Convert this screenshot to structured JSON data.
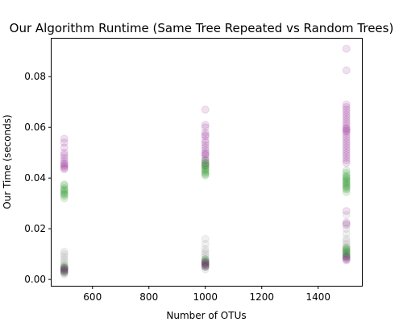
{
  "chart_data": {
    "type": "scatter",
    "title": "Our Algorithm Runtime (Same Tree Repeated vs Random Trees)",
    "xlabel": "Number of OTUs",
    "ylabel": "Our Time (seconds)",
    "xlim": [
      455,
      1555
    ],
    "ylim": [
      -0.0025,
      0.095
    ],
    "xticks": [
      600,
      800,
      1000,
      1200,
      1400
    ],
    "yticks": [
      0.0,
      0.02,
      0.04,
      0.06,
      0.08
    ],
    "ytick_labels": [
      "0.00",
      "0.02",
      "0.04",
      "0.06",
      "0.08"
    ],
    "xtick_labels": [
      "600",
      "800",
      "1000",
      "1200",
      "1400"
    ],
    "grid": false,
    "marker_alpha": 0.12,
    "series": [
      {
        "color": "#800080",
        "x": [
          500,
          500,
          500,
          500,
          500,
          500,
          500,
          500,
          500,
          500,
          500,
          500,
          500,
          1000,
          1000,
          1000,
          1000,
          1000,
          1000,
          1000,
          1000,
          1000,
          1000,
          1000,
          1000,
          1000,
          1000,
          1000,
          1000,
          1000,
          1000,
          1500,
          1500,
          1500,
          1500,
          1500,
          1500,
          1500,
          1500,
          1500,
          1500,
          1500,
          1500,
          1500,
          1500,
          1500,
          1500,
          1500,
          1500,
          1500,
          1500,
          1500,
          1500,
          1500,
          1500,
          1500,
          1500,
          1500,
          1500
        ],
        "y": [
          0.0435,
          0.044,
          0.0445,
          0.045,
          0.0455,
          0.046,
          0.047,
          0.048,
          0.049,
          0.05,
          0.052,
          0.054,
          0.0555,
          0.045,
          0.046,
          0.047,
          0.048,
          0.049,
          0.05,
          0.051,
          0.052,
          0.053,
          0.054,
          0.055,
          0.0565,
          0.058,
          0.06,
          0.061,
          0.067,
          0.057,
          0.0495,
          0.046,
          0.047,
          0.048,
          0.049,
          0.05,
          0.051,
          0.052,
          0.053,
          0.054,
          0.055,
          0.056,
          0.057,
          0.058,
          0.059,
          0.06,
          0.061,
          0.062,
          0.063,
          0.064,
          0.065,
          0.066,
          0.067,
          0.068,
          0.069,
          0.0825,
          0.091,
          0.0585,
          0.0595
        ]
      },
      {
        "color": "#008000",
        "x": [
          500,
          500,
          500,
          500,
          500,
          500,
          500,
          500,
          500,
          500,
          1000,
          1000,
          1000,
          1000,
          1000,
          1000,
          1000,
          1000,
          1000,
          1000,
          1000,
          1000,
          1500,
          1500,
          1500,
          1500,
          1500,
          1500,
          1500,
          1500,
          1500,
          1500,
          1500,
          1500,
          1500,
          1500,
          1500
        ],
        "y": [
          0.032,
          0.033,
          0.0335,
          0.034,
          0.0345,
          0.035,
          0.0355,
          0.036,
          0.037,
          0.0375,
          0.041,
          0.042,
          0.0425,
          0.043,
          0.0435,
          0.044,
          0.0445,
          0.045,
          0.0455,
          0.046,
          0.047,
          0.0415,
          0.0355,
          0.036,
          0.0365,
          0.037,
          0.0375,
          0.038,
          0.0385,
          0.039,
          0.0395,
          0.04,
          0.0405,
          0.041,
          0.042,
          0.043,
          0.0345
        ]
      },
      {
        "color": "#808080",
        "x": [
          500,
          500,
          500,
          500,
          500,
          500,
          500,
          500,
          500,
          500,
          500,
          500,
          1000,
          1000,
          1000,
          1000,
          1000,
          1000,
          1000,
          1000,
          1000,
          1000,
          1000,
          1500,
          1500,
          1500,
          1500,
          1500,
          1500,
          1500,
          1500,
          1500,
          1500,
          1500,
          1500,
          1500
        ],
        "y": [
          0.002,
          0.003,
          0.004,
          0.005,
          0.006,
          0.007,
          0.008,
          0.009,
          0.01,
          0.011,
          0.0045,
          0.0055,
          0.004,
          0.005,
          0.006,
          0.007,
          0.008,
          0.009,
          0.01,
          0.011,
          0.012,
          0.014,
          0.016,
          0.008,
          0.009,
          0.01,
          0.011,
          0.012,
          0.013,
          0.014,
          0.015,
          0.016,
          0.018,
          0.02,
          0.022,
          0.0255
        ]
      },
      {
        "color": "#008000",
        "x": [
          500,
          500,
          500,
          500,
          500,
          500,
          1000,
          1000,
          1000,
          1000,
          1000,
          1000,
          1000,
          1500,
          1500,
          1500,
          1500,
          1500,
          1500,
          1500,
          1500
        ],
        "y": [
          0.0025,
          0.003,
          0.0035,
          0.004,
          0.0045,
          0.005,
          0.005,
          0.0055,
          0.006,
          0.0065,
          0.007,
          0.0075,
          0.008,
          0.009,
          0.0095,
          0.01,
          0.0105,
          0.011,
          0.0115,
          0.012,
          0.0125
        ]
      },
      {
        "color": "#800080",
        "x": [
          500,
          500,
          500,
          500,
          1000,
          1000,
          1000,
          1000,
          1000,
          1500,
          1500,
          1500,
          1500,
          1500,
          1500,
          1500
        ],
        "y": [
          0.003,
          0.0035,
          0.004,
          0.0045,
          0.005,
          0.0055,
          0.006,
          0.0065,
          0.007,
          0.0075,
          0.008,
          0.0085,
          0.009,
          0.0215,
          0.0225,
          0.027
        ]
      }
    ]
  }
}
